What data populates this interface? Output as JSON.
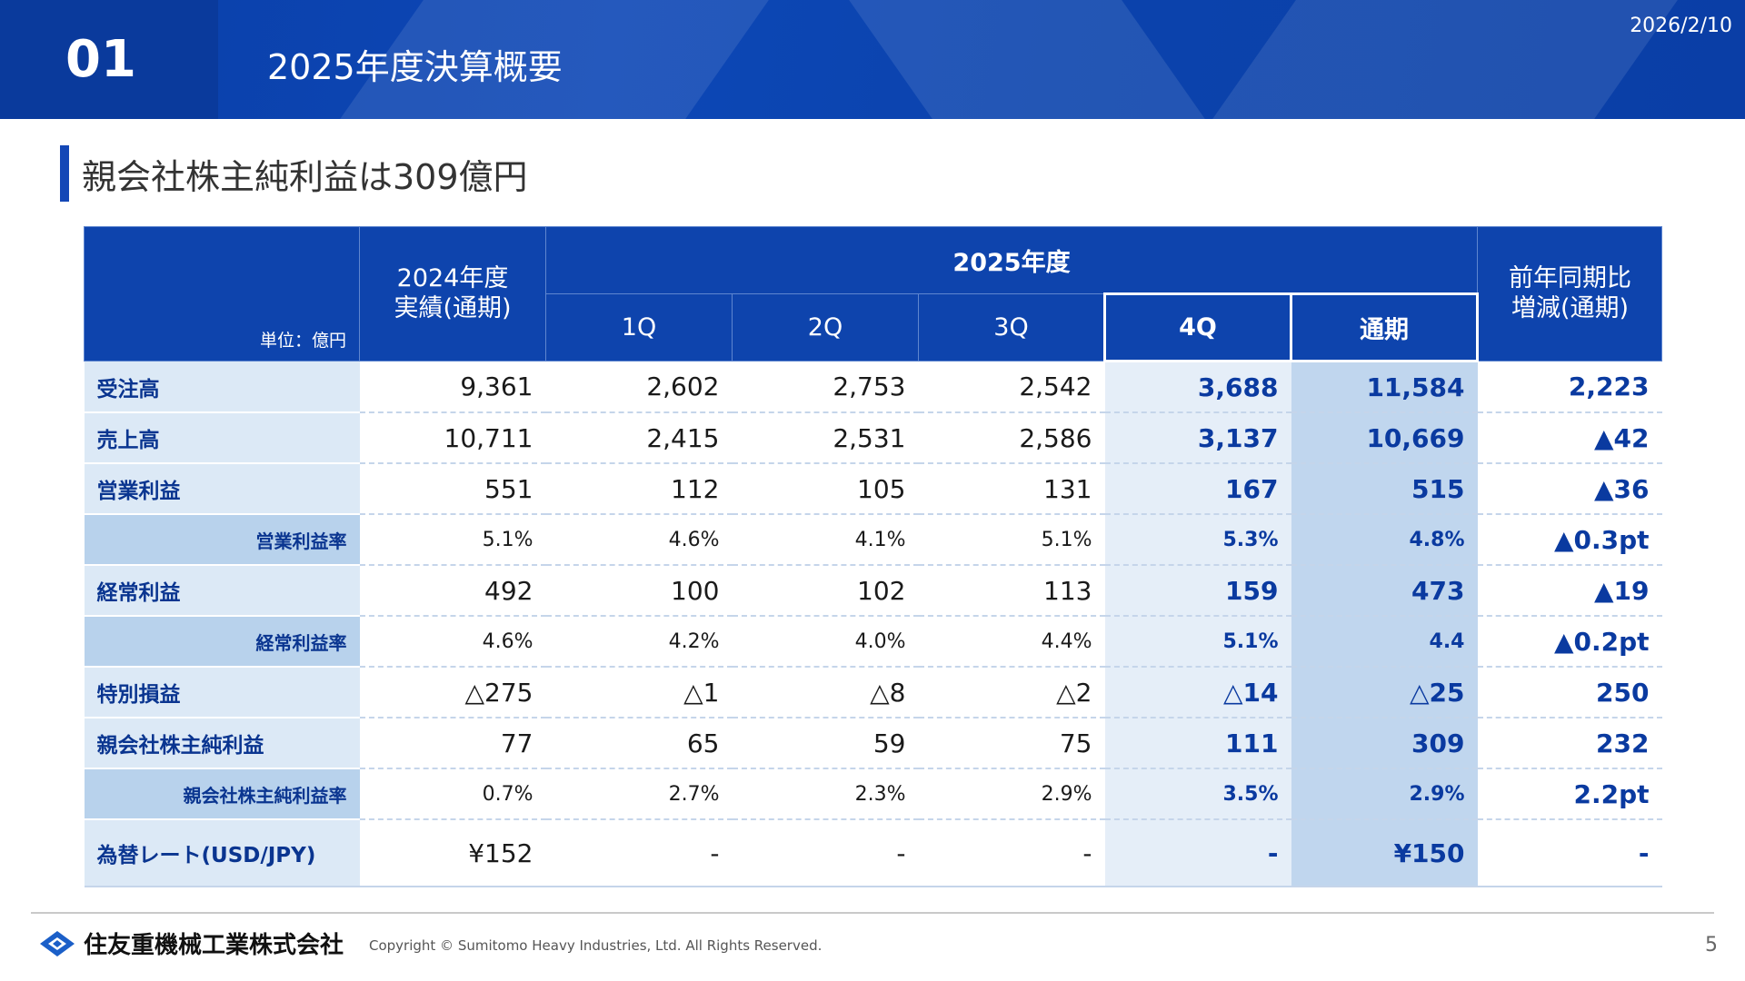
{
  "header": {
    "number": "01",
    "title": "2025年度決算概要",
    "date": "2026/2/10"
  },
  "headline": "親会社株主純利益は309億円",
  "table": {
    "unit_label": "単位：億円",
    "col_prev": "2024年度\n実績(通期)",
    "col_group": "2025年度",
    "col_q1": "1Q",
    "col_q2": "2Q",
    "col_q3": "3Q",
    "col_q4": "4Q",
    "col_fy": "通期",
    "col_change": "前年同期比\n増減(通期)",
    "rows": [
      {
        "label": "受注高",
        "prev": "9,361",
        "q1": "2,602",
        "q2": "2,753",
        "q3": "2,542",
        "q4": "3,688",
        "fy": "11,584",
        "chg": "2,223"
      },
      {
        "label": "売上高",
        "prev": "10,711",
        "q1": "2,415",
        "q2": "2,531",
        "q3": "2,586",
        "q4": "3,137",
        "fy": "10,669",
        "chg": "▲42"
      },
      {
        "label": "営業利益",
        "prev": "551",
        "q1": "112",
        "q2": "105",
        "q3": "131",
        "q4": "167",
        "fy": "515",
        "chg": "▲36"
      },
      {
        "label": "営業利益率",
        "prev": "5.1%",
        "q1": "4.6%",
        "q2": "4.1%",
        "q3": "5.1%",
        "q4": "5.3%",
        "fy": "4.8%",
        "chg": "▲0.3pt"
      },
      {
        "label": "経常利益",
        "prev": "492",
        "q1": "100",
        "q2": "102",
        "q3": "113",
        "q4": "159",
        "fy": "473",
        "chg": "▲19"
      },
      {
        "label": "経常利益率",
        "prev": "4.6%",
        "q1": "4.2%",
        "q2": "4.0%",
        "q3": "4.4%",
        "q4": "5.1%",
        "fy": "4.4",
        "chg": "▲0.2pt"
      },
      {
        "label": "特別損益",
        "prev": "△275",
        "q1": "△1",
        "q2": "△8",
        "q3": "△2",
        "q4": "△14",
        "fy": "△25",
        "chg": "250"
      },
      {
        "label": "親会社株主純利益",
        "prev": "77",
        "q1": "65",
        "q2": "59",
        "q3": "75",
        "q4": "111",
        "fy": "309",
        "chg": "232"
      },
      {
        "label": "親会社株主純利益率",
        "prev": "0.7%",
        "q1": "2.7%",
        "q2": "2.3%",
        "q3": "2.9%",
        "q4": "3.5%",
        "fy": "2.9%",
        "chg": "2.2pt"
      },
      {
        "label": "為替レート(USD/JPY)",
        "prev": "¥152",
        "q1": "-",
        "q2": "-",
        "q3": "-",
        "q4": "-",
        "fy": "¥150",
        "chg": "-"
      }
    ]
  },
  "footer": {
    "company": "住友重機械工業株式会社",
    "copyright": "Copyright © Sumitomo Heavy Industries, Ltd. All Rights Reserved.",
    "page": "5",
    "logo_icon": "shi-logo-icon"
  },
  "colors": {
    "primary": "#0e44ad",
    "light": "#dce9f6",
    "mid": "#c0d6ee"
  }
}
